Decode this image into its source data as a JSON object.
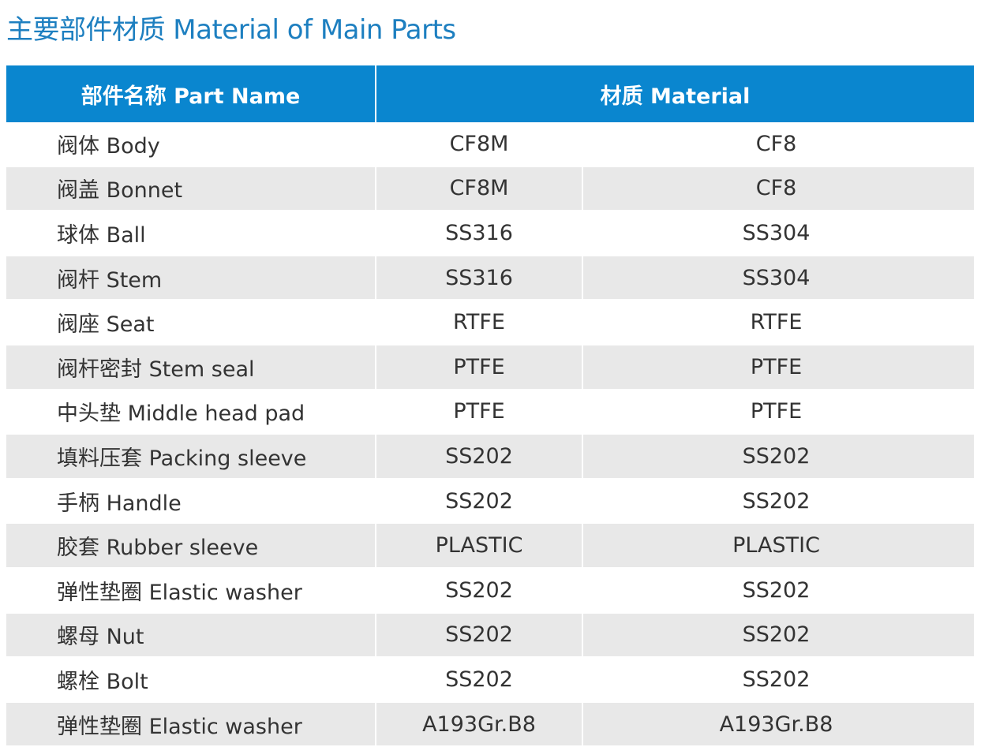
{
  "title": "主要部件材质 Material of Main Parts",
  "table": {
    "headers": {
      "part_name": "部件名称 Part Name",
      "material": "材质 Material"
    },
    "rows": [
      {
        "part": "阀体 Body",
        "m1": "CF8M",
        "m2": "CF8"
      },
      {
        "part": "阀盖 Bonnet",
        "m1": "CF8M",
        "m2": "CF8"
      },
      {
        "part": "球体 Ball",
        "m1": "SS316",
        "m2": "SS304"
      },
      {
        "part": "阀杆 Stem",
        "m1": "SS316",
        "m2": "SS304"
      },
      {
        "part": "阀座 Seat",
        "m1": "RTFE",
        "m2": "RTFE"
      },
      {
        "part": "阀杆密封 Stem seal",
        "m1": "PTFE",
        "m2": "PTFE"
      },
      {
        "part": "中头垫 Middle head pad",
        "m1": "PTFE",
        "m2": "PTFE"
      },
      {
        "part": "填料压套 Packing sleeve",
        "m1": "SS202",
        "m2": "SS202"
      },
      {
        "part": "手柄 Handle",
        "m1": "SS202",
        "m2": "SS202"
      },
      {
        "part": "胶套 Rubber sleeve",
        "m1": "PLASTIC",
        "m2": "PLASTIC"
      },
      {
        "part": "弹性垫圈 Elastic washer",
        "m1": "SS202",
        "m2": "SS202"
      },
      {
        "part": "螺母 Nut",
        "m1": "SS202",
        "m2": "SS202"
      },
      {
        "part": "螺栓 Bolt",
        "m1": "SS202",
        "m2": "SS202"
      },
      {
        "part": "弹性垫圈 Elastic washer",
        "m1": "A193Gr.B8",
        "m2": "A193Gr.B8"
      }
    ]
  },
  "colors": {
    "title": "#1d7fc0",
    "header_bg": "#0a86cf",
    "stripe_bg": "#e8e8e8",
    "text": "#333333"
  }
}
